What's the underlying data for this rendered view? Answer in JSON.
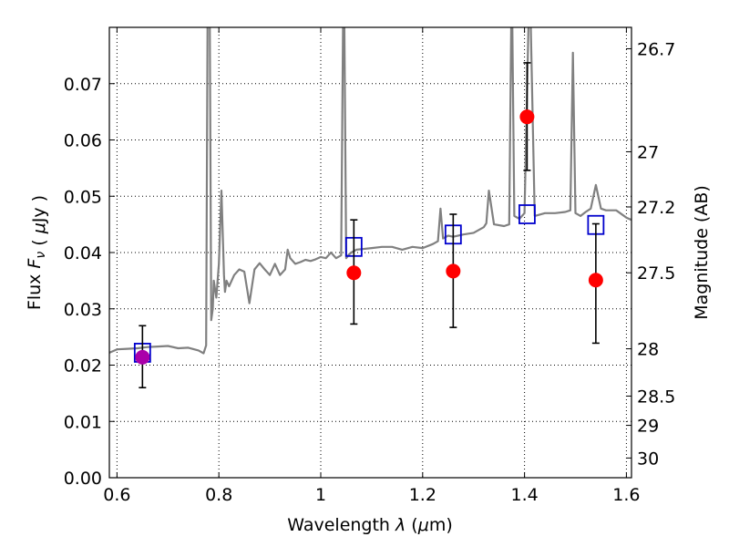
{
  "chart_data": {
    "type": "scatter",
    "title": "",
    "xlabel": "Wavelength  λ (μm)",
    "ylabel": "Flux  F_ν  ( μJy )",
    "ylabel_right": "Magnitude (AB)",
    "xlim": [
      0.585,
      1.61
    ],
    "ylim": [
      0.0,
      0.08
    ],
    "grid": true,
    "x_ticks": [
      0.6,
      0.8,
      1.0,
      1.2,
      1.4,
      1.6
    ],
    "x_tick_labels": [
      "0.6",
      "0.8",
      "1",
      "1.2",
      "1.4",
      "1.6"
    ],
    "y_ticks": [
      0.0,
      0.01,
      0.02,
      0.03,
      0.04,
      0.05,
      0.06,
      0.07
    ],
    "y_tick_labels": [
      "0.00",
      "0.01",
      "0.02",
      "0.03",
      "0.04",
      "0.05",
      "0.06",
      "0.07"
    ],
    "right_axis_ticks": [
      {
        "label": "26.7",
        "flux": 0.0762
      },
      {
        "label": "27",
        "flux": 0.0579
      },
      {
        "label": "27.2",
        "flux": 0.0481
      },
      {
        "label": "27.5",
        "flux": 0.0364
      },
      {
        "label": "28",
        "flux": 0.0229
      },
      {
        "label": "28.5",
        "flux": 0.0145
      },
      {
        "label": "29",
        "flux": 0.0093
      },
      {
        "label": "30",
        "flux": 0.0035
      }
    ],
    "series": [
      {
        "kind": "line",
        "color": "#808080",
        "x": [
          0.585,
          0.6,
          0.62,
          0.64,
          0.66,
          0.68,
          0.7,
          0.72,
          0.74,
          0.76,
          0.77,
          0.775,
          0.778,
          0.78,
          0.782,
          0.785,
          0.788,
          0.79,
          0.795,
          0.8,
          0.805,
          0.81,
          0.812,
          0.815,
          0.82,
          0.83,
          0.84,
          0.85,
          0.86,
          0.87,
          0.88,
          0.89,
          0.9,
          0.91,
          0.92,
          0.93,
          0.935,
          0.94,
          0.95,
          0.96,
          0.97,
          0.98,
          0.99,
          1.0,
          1.01,
          1.02,
          1.03,
          1.04,
          1.045,
          1.05,
          1.055,
          1.06,
          1.07,
          1.08,
          1.1,
          1.12,
          1.14,
          1.16,
          1.18,
          1.2,
          1.22,
          1.23,
          1.235,
          1.24,
          1.25,
          1.26,
          1.28,
          1.3,
          1.32,
          1.325,
          1.33,
          1.34,
          1.36,
          1.37,
          1.375,
          1.38,
          1.39,
          1.4,
          1.41,
          1.42,
          1.44,
          1.46,
          1.48,
          1.49,
          1.495,
          1.5,
          1.51,
          1.52,
          1.53,
          1.54,
          1.55,
          1.56,
          1.58,
          1.6,
          1.61
        ],
        "y": [
          0.0222,
          0.0228,
          0.0229,
          0.023,
          0.0232,
          0.0233,
          0.0234,
          0.023,
          0.0231,
          0.0226,
          0.0221,
          0.0235,
          0.085,
          0.09,
          0.085,
          0.028,
          0.03,
          0.035,
          0.032,
          0.038,
          0.051,
          0.036,
          0.033,
          0.035,
          0.034,
          0.036,
          0.037,
          0.0366,
          0.031,
          0.037,
          0.0381,
          0.037,
          0.036,
          0.038,
          0.036,
          0.037,
          0.0405,
          0.039,
          0.038,
          0.0383,
          0.0387,
          0.0385,
          0.0388,
          0.0392,
          0.039,
          0.04,
          0.039,
          0.0395,
          0.095,
          0.039,
          0.0396,
          0.04,
          0.0405,
          0.0406,
          0.0408,
          0.041,
          0.041,
          0.0405,
          0.041,
          0.0408,
          0.0415,
          0.042,
          0.0478,
          0.0425,
          0.043,
          0.0428,
          0.0432,
          0.0435,
          0.0445,
          0.0452,
          0.051,
          0.045,
          0.0447,
          0.045,
          0.09,
          0.0465,
          0.046,
          0.047,
          0.09,
          0.0465,
          0.047,
          0.047,
          0.0472,
          0.0475,
          0.0755,
          0.047,
          0.0465,
          0.0472,
          0.0478,
          0.052,
          0.0478,
          0.0475,
          0.0475,
          0.0462,
          0.0458
        ]
      },
      {
        "kind": "open-square",
        "color": "#0000cc",
        "x": [
          0.65,
          1.065,
          1.26,
          1.405,
          1.54
        ],
        "y": [
          0.0222,
          0.041,
          0.0432,
          0.0468,
          0.0449
        ]
      },
      {
        "kind": "point-errorbar",
        "color": "#ff0000",
        "x": [
          1.065,
          1.26,
          1.405,
          1.54
        ],
        "y": [
          0.0364,
          0.0367,
          0.0641,
          0.0351
        ],
        "yerr_low": [
          0.0273,
          0.0267,
          0.0546,
          0.0239
        ],
        "yerr_high": [
          0.0458,
          0.0468,
          0.0737,
          0.0451
        ]
      },
      {
        "kind": "point-errorbar",
        "color": "#aa00aa",
        "x": [
          0.65
        ],
        "y": [
          0.0214
        ],
        "yerr_low": [
          0.016
        ],
        "yerr_high": [
          0.027
        ]
      }
    ]
  }
}
